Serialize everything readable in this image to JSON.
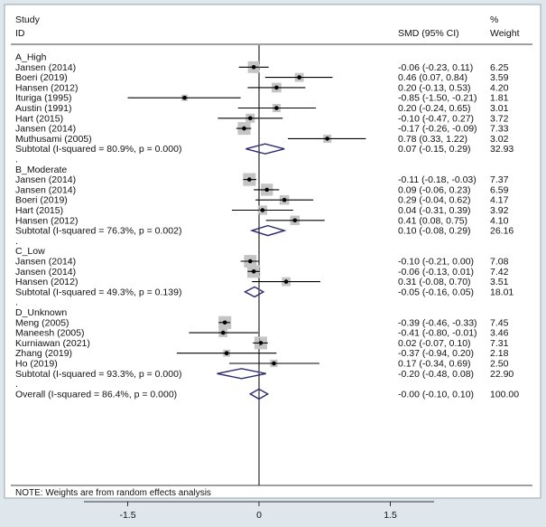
{
  "chart_data": {
    "type": "forest",
    "header": {
      "study": "Study",
      "id": "ID",
      "smd": "SMD (95% CI)",
      "weight_pct": "%",
      "weight": "Weight"
    },
    "axis": {
      "min": -2.0,
      "max": 2.0,
      "ticks": [
        "-1.5",
        "0",
        "1.5"
      ],
      "tick_values": [
        -1.5,
        0,
        1.5
      ]
    },
    "rows": [
      {
        "kind": "group",
        "label": "A_High"
      },
      {
        "kind": "study",
        "label": "Jansen (2014)",
        "est": -0.06,
        "lo": -0.23,
        "hi": 0.11,
        "ci": "-0.06 (-0.23, 0.11)",
        "weight": "6.25",
        "w": 6.25
      },
      {
        "kind": "study",
        "label": "Boeri (2019)",
        "est": 0.46,
        "lo": 0.07,
        "hi": 0.84,
        "ci": "0.46 (0.07, 0.84)",
        "weight": "3.59",
        "w": 3.59
      },
      {
        "kind": "study",
        "label": "Hansen (2012)",
        "est": 0.2,
        "lo": -0.13,
        "hi": 0.53,
        "ci": "0.20 (-0.13, 0.53)",
        "weight": "4.20",
        "w": 4.2
      },
      {
        "kind": "study",
        "label": "Ituriga (1995)",
        "est": -0.85,
        "lo": -1.5,
        "hi": -0.21,
        "ci": "-0.85 (-1.50, -0.21)",
        "weight": "1.81",
        "w": 1.81
      },
      {
        "kind": "study",
        "label": "Austin (1991)",
        "est": 0.2,
        "lo": -0.24,
        "hi": 0.65,
        "ci": "0.20 (-0.24, 0.65)",
        "weight": "3.01",
        "w": 3.01
      },
      {
        "kind": "study",
        "label": "Hart (2015)",
        "est": -0.1,
        "lo": -0.47,
        "hi": 0.27,
        "ci": "-0.10 (-0.47, 0.27)",
        "weight": "3.72",
        "w": 3.72
      },
      {
        "kind": "study",
        "label": "Jansen (2014)",
        "est": -0.17,
        "lo": -0.26,
        "hi": -0.09,
        "ci": "-0.17 (-0.26, -0.09)",
        "weight": "7.33",
        "w": 7.33
      },
      {
        "kind": "study",
        "label": "Muthusami (2005)",
        "est": 0.78,
        "lo": 0.33,
        "hi": 1.22,
        "ci": "0.78 (0.33, 1.22)",
        "weight": "3.02",
        "w": 3.02
      },
      {
        "kind": "subtotal",
        "label": "Subtotal  (I-squared = 80.9%, p = 0.000)",
        "est": 0.07,
        "lo": -0.15,
        "hi": 0.29,
        "ci": "0.07 (-0.15, 0.29)",
        "weight": "32.93"
      },
      {
        "kind": "dot",
        "label": "."
      },
      {
        "kind": "group",
        "label": "B_Moderate"
      },
      {
        "kind": "study",
        "label": "Jansen (2014)",
        "est": -0.11,
        "lo": -0.18,
        "hi": -0.03,
        "ci": "-0.11 (-0.18, -0.03)",
        "weight": "7.37",
        "w": 7.37
      },
      {
        "kind": "study",
        "label": "Jansen (2014)",
        "est": 0.09,
        "lo": -0.06,
        "hi": 0.23,
        "ci": "0.09 (-0.06, 0.23)",
        "weight": "6.59",
        "w": 6.59
      },
      {
        "kind": "study",
        "label": "Boeri (2019)",
        "est": 0.29,
        "lo": -0.04,
        "hi": 0.62,
        "ci": "0.29 (-0.04, 0.62)",
        "weight": "4.17",
        "w": 4.17
      },
      {
        "kind": "study",
        "label": "Hart (2015)",
        "est": 0.04,
        "lo": -0.31,
        "hi": 0.39,
        "ci": "0.04 (-0.31, 0.39)",
        "weight": "3.92",
        "w": 3.92
      },
      {
        "kind": "study",
        "label": "Hansen (2012)",
        "est": 0.41,
        "lo": 0.08,
        "hi": 0.75,
        "ci": "0.41 (0.08, 0.75)",
        "weight": "4.10",
        "w": 4.1
      },
      {
        "kind": "subtotal",
        "label": "Subtotal  (I-squared = 76.3%, p = 0.002)",
        "est": 0.1,
        "lo": -0.08,
        "hi": 0.29,
        "ci": "0.10 (-0.08, 0.29)",
        "weight": "26.16"
      },
      {
        "kind": "dot",
        "label": "."
      },
      {
        "kind": "group",
        "label": "C_Low"
      },
      {
        "kind": "study",
        "label": "Jansen (2014)",
        "est": -0.1,
        "lo": -0.21,
        "hi": 0.0,
        "ci": "-0.10 (-0.21, 0.00)",
        "weight": "7.08",
        "w": 7.08
      },
      {
        "kind": "study",
        "label": "Jansen (2014)",
        "est": -0.06,
        "lo": -0.13,
        "hi": 0.01,
        "ci": "-0.06 (-0.13, 0.01)",
        "weight": "7.42",
        "w": 7.42
      },
      {
        "kind": "study",
        "label": "Hansen (2012)",
        "est": 0.31,
        "lo": -0.08,
        "hi": 0.7,
        "ci": "0.31 (-0.08, 0.70)",
        "weight": "3.51",
        "w": 3.51
      },
      {
        "kind": "subtotal",
        "label": "Subtotal  (I-squared = 49.3%, p = 0.139)",
        "est": -0.05,
        "lo": -0.16,
        "hi": 0.05,
        "ci": "-0.05 (-0.16, 0.05)",
        "weight": "18.01"
      },
      {
        "kind": "dot",
        "label": "."
      },
      {
        "kind": "group",
        "label": "D_Unknown"
      },
      {
        "kind": "study",
        "label": "Meng (2005)",
        "est": -0.39,
        "lo": -0.46,
        "hi": -0.33,
        "ci": "-0.39 (-0.46, -0.33)",
        "weight": "7.45",
        "w": 7.45
      },
      {
        "kind": "study",
        "label": "Maneesh (2005)",
        "est": -0.41,
        "lo": -0.8,
        "hi": -0.01,
        "ci": "-0.41 (-0.80, -0.01)",
        "weight": "3.46",
        "w": 3.46
      },
      {
        "kind": "study",
        "label": "Kurniawan (2021)",
        "est": 0.02,
        "lo": -0.07,
        "hi": 0.1,
        "ci": "0.02 (-0.07, 0.10)",
        "weight": "7.31",
        "w": 7.31
      },
      {
        "kind": "study",
        "label": "Zhang (2019)",
        "est": -0.37,
        "lo": -0.94,
        "hi": 0.2,
        "ci": "-0.37 (-0.94, 0.20)",
        "weight": "2.18",
        "w": 2.18
      },
      {
        "kind": "study",
        "label": "Ho (2019)",
        "est": 0.17,
        "lo": -0.34,
        "hi": 0.69,
        "ci": "0.17 (-0.34, 0.69)",
        "weight": "2.50",
        "w": 2.5
      },
      {
        "kind": "subtotal",
        "label": "Subtotal  (I-squared = 93.3%, p = 0.000)",
        "est": -0.2,
        "lo": -0.48,
        "hi": 0.08,
        "ci": "-0.20 (-0.48, 0.08)",
        "weight": "22.90"
      },
      {
        "kind": "dot",
        "label": "."
      },
      {
        "kind": "overall",
        "label": "Overall  (I-squared = 86.4%, p = 0.000)",
        "est": -0.0,
        "lo": -0.1,
        "hi": 0.1,
        "ci": "-0.00 (-0.10, 0.10)",
        "weight": "100.00"
      }
    ],
    "note": "NOTE: Weights are from random effects analysis",
    "colors": {
      "background": "#dfe7ed",
      "panel": "#ffffff",
      "box": "#c4c4c4",
      "diamond": "#2b2b6e",
      "line": "#000000"
    }
  }
}
